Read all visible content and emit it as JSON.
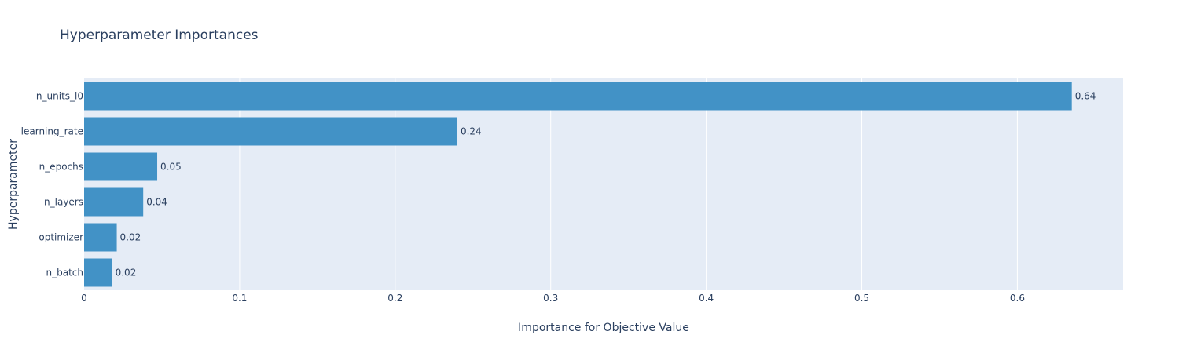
{
  "chart_data": {
    "type": "bar",
    "orientation": "horizontal",
    "title": "Hyperparameter Importances",
    "xlabel": "Importance for Objective Value",
    "ylabel": "Hyperparameter",
    "categories": [
      "n_units_l0",
      "learning_rate",
      "n_epochs",
      "n_layers",
      "optimizer",
      "n_batch"
    ],
    "values": [
      0.635,
      0.24,
      0.047,
      0.038,
      0.021,
      0.018
    ],
    "value_labels": [
      "0.64",
      "0.24",
      "0.05",
      "0.04",
      "0.02",
      "0.02"
    ],
    "xlim": [
      0,
      0.668
    ],
    "xticks": [
      0,
      0.1,
      0.2,
      0.3,
      0.4,
      0.5,
      0.6
    ],
    "xtick_labels": [
      "0",
      "0.1",
      "0.2",
      "0.3",
      "0.4",
      "0.5",
      "0.6"
    ],
    "grid": true,
    "colors": {
      "bar": "#4292c6",
      "plot_bg": "#e5ecf6",
      "grid": "#ffffff",
      "text": "#2a3f5f"
    }
  }
}
